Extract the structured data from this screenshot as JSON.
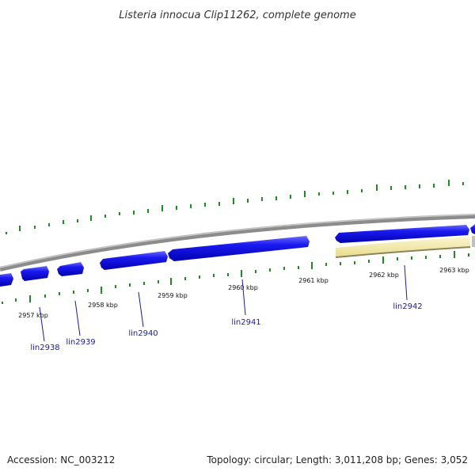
{
  "title": "Listeria innocua Clip11262, complete genome",
  "footer": {
    "accession": "Accession: NC_003212",
    "summary": "Topology: circular; Length: 3,011,208 bp; Genes: 3,052"
  },
  "kbp_labels": [
    "2957 kbp",
    "2958 kbp",
    "2959 kbp",
    "2960 kbp",
    "2961 kbp",
    "2962 kbp",
    "2963 kbp"
  ],
  "gene_labels": [
    "lin2938",
    "lin2939",
    "lin2940",
    "lin2941",
    "lin2942"
  ],
  "colors": {
    "gene_forward": "#1010e6",
    "gene_highlight": "#f0e6a0",
    "backbone": "#8c8c8c",
    "gc_ticks": "#1e8c1e",
    "label_line": "#1a1aa6"
  }
}
